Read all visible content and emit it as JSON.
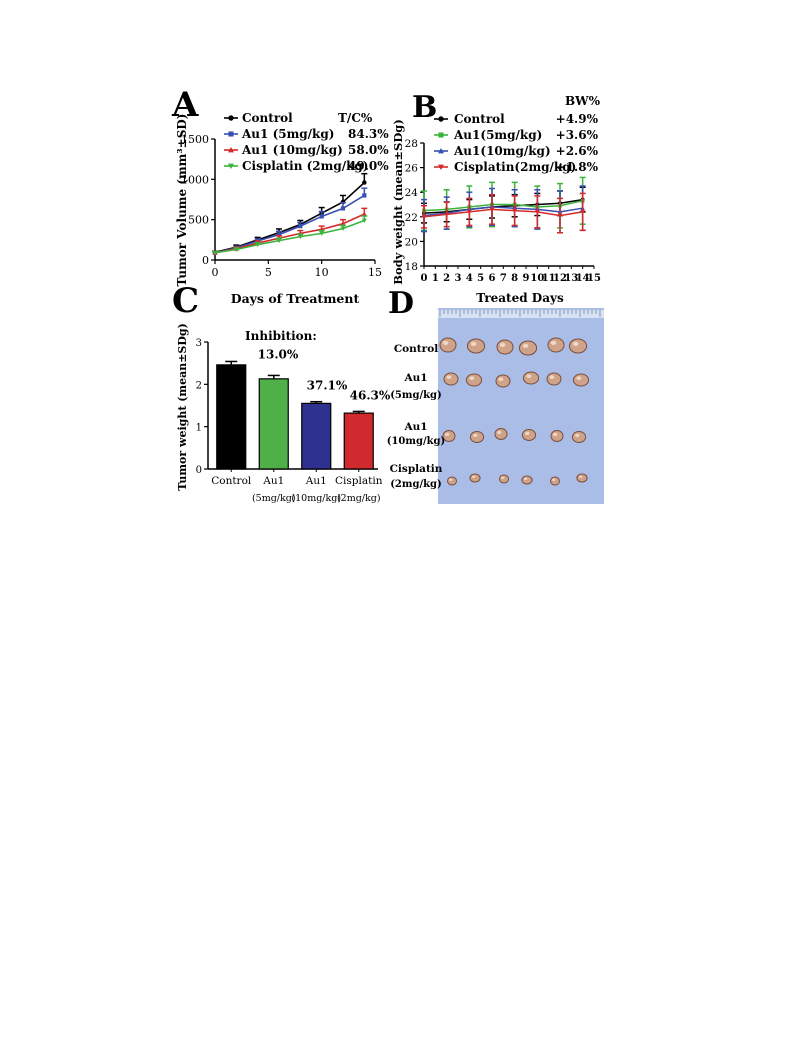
{
  "panel_labels": {
    "A": "A",
    "B": "B",
    "C": "C",
    "D": "D"
  },
  "colors": {
    "control": "#000000",
    "au1_5": "#3a4fb4",
    "au1_10": "#d62a2a",
    "cisplatin": "#3cb43c",
    "bw_control": "#000000",
    "bw_au1_5": "#3cb43c",
    "bw_au1_10": "#3a4fb4",
    "bw_cisplatin": "#d62a2a",
    "bar_control": "#000000",
    "bar_au1_5": "#4fb04a",
    "bar_au1_10": "#2e3190",
    "bar_cis": "#d12a2e",
    "photo_bg": "#a9bde6"
  },
  "chart_data": [
    {
      "id": "A",
      "type": "line",
      "xlabel": "Days of Treatment",
      "ylabel": "Tumor Volume (mm³±SD)",
      "xlim": [
        0,
        15
      ],
      "ylim": [
        0,
        1500
      ],
      "xticks": [
        0,
        5,
        10,
        15
      ],
      "yticks": [
        0,
        500,
        1000,
        1500
      ],
      "legend_header": "T/C%",
      "series": [
        {
          "name": "Control",
          "value": "",
          "color": "#000000",
          "x": [
            0,
            2,
            4,
            6,
            8,
            10,
            12,
            14
          ],
          "y": [
            95,
            160,
            250,
            340,
            440,
            580,
            720,
            960
          ],
          "err": [
            15,
            25,
            30,
            45,
            50,
            70,
            80,
            110
          ]
        },
        {
          "name": "Au1 (5mg/kg)",
          "value": "84.3%",
          "color": "#3a4fb4",
          "x": [
            0,
            2,
            4,
            6,
            8,
            10,
            12,
            14
          ],
          "y": [
            90,
            150,
            235,
            315,
            420,
            540,
            640,
            800
          ],
          "err": [
            15,
            20,
            25,
            40,
            45,
            60,
            70,
            90
          ]
        },
        {
          "name": "Au1 (10mg/kg)",
          "value": "58.0%",
          "color": "#d62a2a",
          "x": [
            0,
            2,
            4,
            6,
            8,
            10,
            12,
            14
          ],
          "y": [
            90,
            140,
            210,
            270,
            330,
            380,
            450,
            570
          ],
          "err": [
            15,
            20,
            25,
            30,
            35,
            40,
            50,
            70
          ]
        },
        {
          "name": "Cisplatin (2mg/kg)",
          "value": "49.0%",
          "color": "#3cb43c",
          "x": [
            0,
            2,
            4,
            6,
            8,
            10,
            12,
            14
          ],
          "y": [
            90,
            130,
            190,
            240,
            290,
            330,
            390,
            490
          ],
          "err": [
            15,
            20,
            25,
            30,
            30,
            35,
            40,
            55
          ]
        }
      ]
    },
    {
      "id": "B",
      "type": "line",
      "xlabel": "",
      "ylabel": "Body weight (mean±SDg)",
      "xlim": [
        0,
        15
      ],
      "ylim": [
        18,
        28
      ],
      "xticks": [
        0,
        1,
        2,
        3,
        4,
        5,
        6,
        7,
        8,
        9,
        10,
        11,
        12,
        13,
        14,
        15
      ],
      "yticks": [
        18,
        20,
        22,
        24,
        26,
        28
      ],
      "legend_header": "BW%",
      "series": [
        {
          "name": "Control",
          "value": "+4.9%",
          "color": "#000000",
          "x": [
            0,
            2,
            4,
            6,
            8,
            10,
            12,
            14
          ],
          "y": [
            22.3,
            22.4,
            22.6,
            22.8,
            22.9,
            23.0,
            23.1,
            23.4
          ],
          "err": [
            0.8,
            0.8,
            0.8,
            0.9,
            0.9,
            0.9,
            1.0,
            1.0
          ]
        },
        {
          "name": "Au1(5mg/kg)",
          "value": "+3.6%",
          "color": "#3cb43c",
          "x": [
            0,
            2,
            4,
            6,
            8,
            10,
            12,
            14
          ],
          "y": [
            22.5,
            22.6,
            22.8,
            23.0,
            23.0,
            22.8,
            22.9,
            23.3
          ],
          "err": [
            1.6,
            1.6,
            1.7,
            1.8,
            1.8,
            1.7,
            1.8,
            1.9
          ]
        },
        {
          "name": "Au1(10mg/kg)",
          "value": "+2.6%",
          "color": "#3a4fb4",
          "x": [
            0,
            2,
            4,
            6,
            8,
            10,
            12,
            14
          ],
          "y": [
            22.1,
            22.3,
            22.6,
            22.8,
            22.7,
            22.6,
            22.4,
            22.7
          ],
          "err": [
            1.3,
            1.3,
            1.4,
            1.5,
            1.5,
            1.6,
            1.7,
            1.8
          ]
        },
        {
          "name": "Cisplatin(2mg/kg)",
          "value": "+1.8%",
          "color": "#d62a2a",
          "x": [
            0,
            2,
            4,
            6,
            8,
            10,
            12,
            14
          ],
          "y": [
            22.0,
            22.2,
            22.4,
            22.6,
            22.5,
            22.4,
            22.1,
            22.4
          ],
          "err": [
            0.9,
            1.0,
            1.1,
            1.2,
            1.2,
            1.3,
            1.4,
            1.5
          ]
        }
      ]
    },
    {
      "id": "C",
      "type": "bar",
      "ylabel": "Tumor weight (mean±SDg)",
      "ylim": [
        0,
        3
      ],
      "yticks": [
        0,
        1,
        2,
        3
      ],
      "annotation_title": "Inhibition:",
      "categories": [
        {
          "line1": "Control",
          "line2": ""
        },
        {
          "line1": "Au1",
          "line2": "(5mg/kg)"
        },
        {
          "line1": "Au1",
          "line2": "(10mg/kg)"
        },
        {
          "line1": "Cisplatin",
          "line2": "(2mg/kg)"
        }
      ],
      "values": [
        2.46,
        2.13,
        1.55,
        1.32
      ],
      "errors": [
        0.08,
        0.08,
        0.04,
        0.04
      ],
      "inhibition": [
        "",
        "13.0%",
        "37.1%",
        "46.3%"
      ],
      "colors": [
        "#000000",
        "#4fb04a",
        "#2e3190",
        "#d12a2e"
      ]
    }
  ],
  "photo": {
    "title": "Treated Days",
    "rows": [
      {
        "line1": "Control",
        "line2": ""
      },
      {
        "line1": "Au1",
        "line2": "(5mg/kg)"
      },
      {
        "line1": "Au1",
        "line2": "(10mg/kg)"
      },
      {
        "line1": "Cisplatin",
        "line2": "(2mg/kg)"
      }
    ]
  }
}
